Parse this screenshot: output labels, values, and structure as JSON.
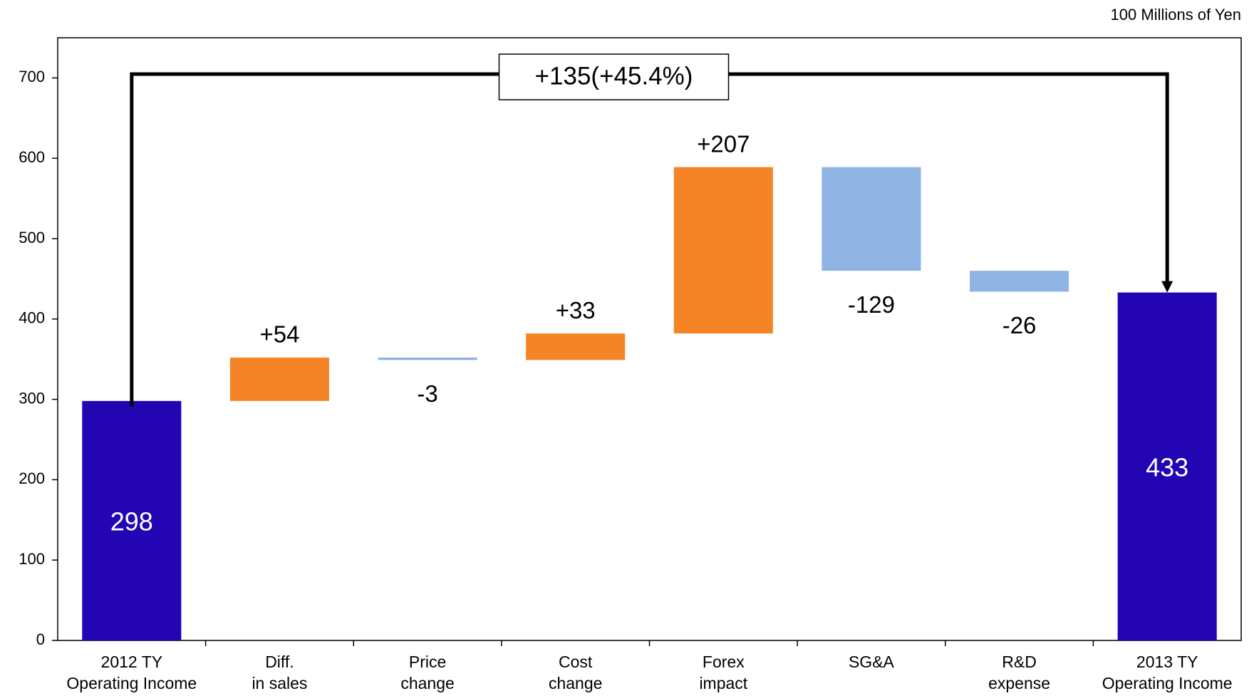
{
  "chart_data": {
    "type": "waterfall",
    "unit_label": "100 Millions of Yen",
    "annotation": "+135(+45.4%)",
    "categories": [
      [
        "2012 TY",
        "Operating Income"
      ],
      [
        "Diff.",
        "in sales"
      ],
      [
        "Price",
        "change"
      ],
      [
        "Cost",
        "change"
      ],
      [
        "Forex",
        "impact"
      ],
      [
        "SG&A"
      ],
      [
        "R&D",
        "expense"
      ],
      [
        "2013 TY",
        "Operating Income"
      ]
    ],
    "measure": [
      "absolute",
      "relative",
      "relative",
      "relative",
      "relative",
      "relative",
      "relative",
      "total"
    ],
    "values": [
      298,
      54,
      -3,
      33,
      207,
      -129,
      -26,
      433
    ],
    "value_labels": [
      "298",
      "+54",
      "-3",
      "+33",
      "+207",
      "-129",
      "-26",
      "433"
    ],
    "colors": {
      "total": "#2305b3",
      "increase": "#f58426",
      "decrease": "#8fb4e3"
    },
    "ylim": [
      0,
      750
    ],
    "yticks": [
      0,
      100,
      200,
      300,
      400,
      500,
      600,
      700
    ]
  }
}
